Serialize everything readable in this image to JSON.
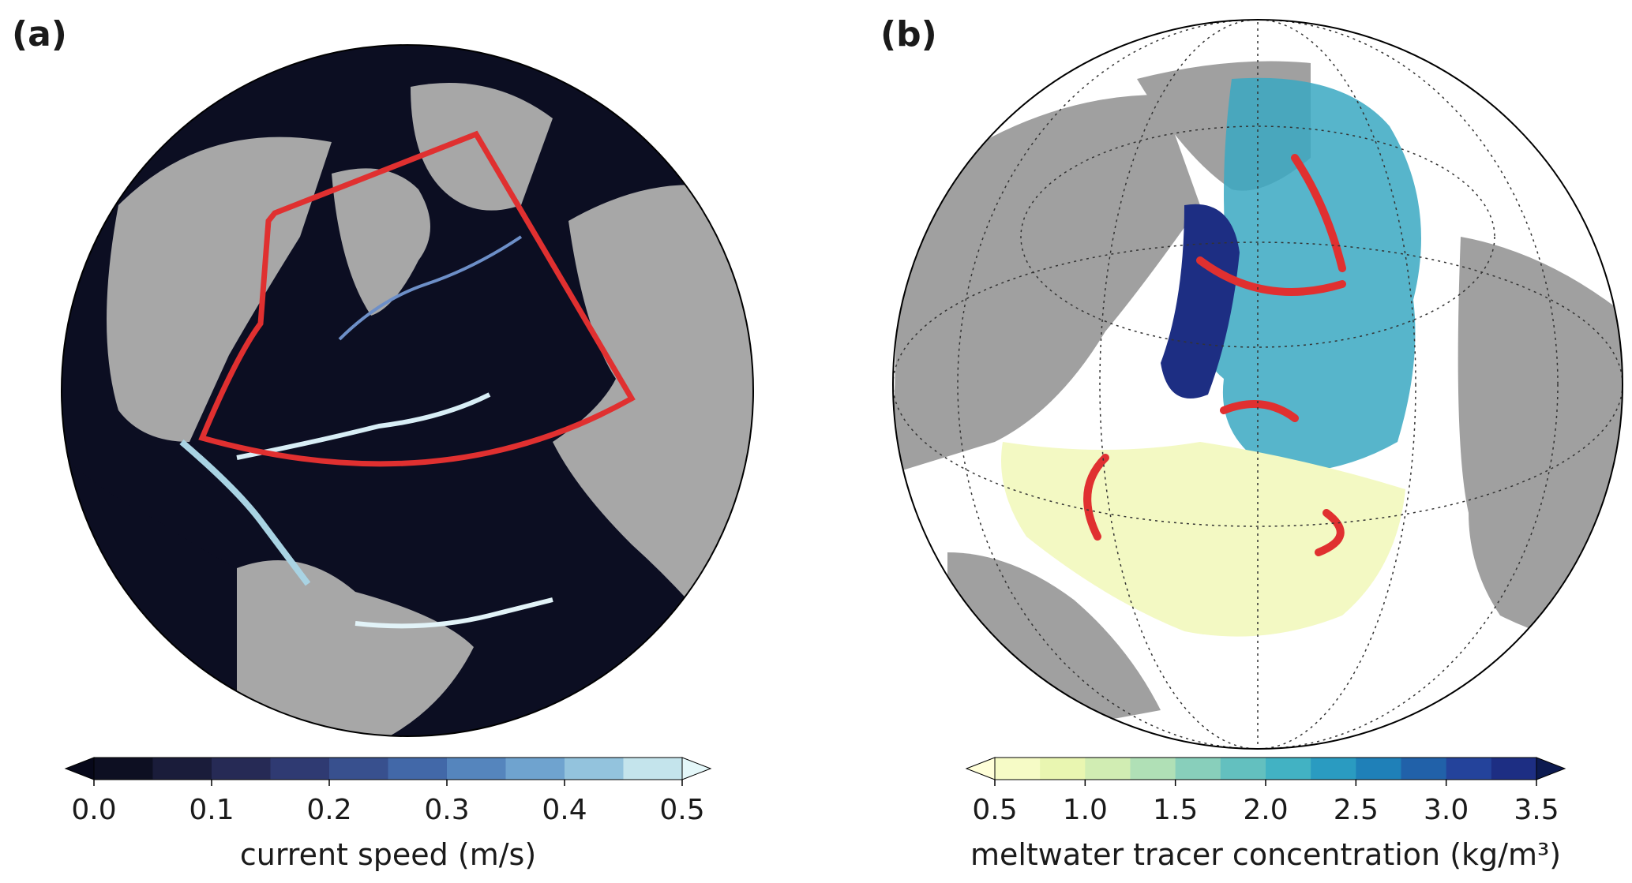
{
  "panels": [
    {
      "label": "(a)",
      "colorbar": {
        "label": "current speed (m/s)",
        "range": [
          0,
          0.5
        ],
        "ticks": [
          {
            "value": 0,
            "label": "0.0"
          },
          {
            "value": 0.1,
            "label": "0.1"
          },
          {
            "value": 0.2,
            "label": "0.2"
          },
          {
            "value": 0.3,
            "label": "0.3"
          },
          {
            "value": 0.4,
            "label": "0.4"
          },
          {
            "value": 0.5,
            "label": "0.5"
          }
        ],
        "colors": [
          "#0d0f22",
          "#1a1c3a",
          "#262a55",
          "#2f3a72",
          "#38508e",
          "#4268a8",
          "#5585bd",
          "#6fa3cf",
          "#93c3dd",
          "#c4e4ec"
        ],
        "under": "#07081a",
        "over": "#e4f7f9"
      }
    },
    {
      "label": "(b)",
      "colorbar": {
        "label": "meltwater tracer concentration (kg/m³)",
        "range": [
          0.5,
          3.5
        ],
        "ticks": [
          {
            "value": 0.5,
            "label": "0.5"
          },
          {
            "value": 1,
            "label": "1.0"
          },
          {
            "value": 1.5,
            "label": "1.5"
          },
          {
            "value": 2,
            "label": "2.0"
          },
          {
            "value": 2.5,
            "label": "2.5"
          },
          {
            "value": 3,
            "label": "3.0"
          },
          {
            "value": 3.5,
            "label": "3.5"
          }
        ],
        "colors": [
          "#f6fbc6",
          "#e9f6b1",
          "#d1edb3",
          "#b0e0b6",
          "#88cfbb",
          "#63c0bf",
          "#42b2c3",
          "#2a9bc1",
          "#1f80b8",
          "#2161a9",
          "#24439b",
          "#1d2e83"
        ],
        "under": "#ffffd9",
        "over": "#0c1a50"
      }
    }
  ]
}
